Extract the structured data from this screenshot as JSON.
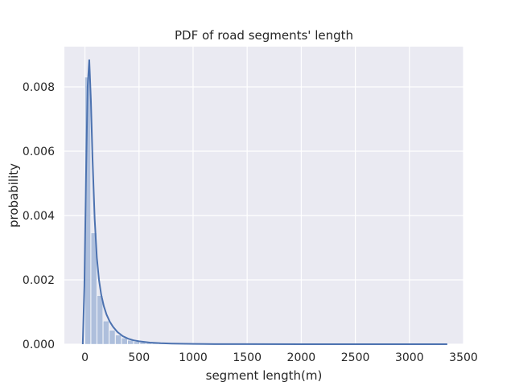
{
  "chart_data": {
    "type": "histogram",
    "title": "PDF of road segments' length",
    "xlabel": "segment length(m)",
    "ylabel": "probability",
    "xlim": [
      -190,
      3500
    ],
    "ylim": [
      0,
      0.00925
    ],
    "xticks": [
      0,
      500,
      1000,
      1500,
      2000,
      2500,
      3000,
      3500
    ],
    "xtick_labels": [
      "0",
      "500",
      "1000",
      "1500",
      "2000",
      "2500",
      "3000",
      "3500"
    ],
    "yticks": [
      0.0,
      0.002,
      0.004,
      0.006,
      0.008
    ],
    "ytick_labels": [
      "0.000",
      "0.002",
      "0.004",
      "0.006",
      "0.008"
    ],
    "grid": true,
    "colors": {
      "background": "#eaeaf2",
      "grid": "#ffffff",
      "bar": "#aebfdc",
      "kde": "#4c72b0"
    },
    "bins": {
      "bin_width": 56.6,
      "edges_start": 0,
      "values": [
        0.0083,
        0.00346,
        0.00151,
        0.00072,
        0.00043,
        0.00028,
        0.00019,
        0.00012,
        8e-05,
        6e-05,
        4e-05,
        3e-05,
        2.5e-05,
        2e-05,
        1.5e-05,
        1.2e-05,
        1e-05,
        8e-06,
        6e-06,
        5e-06,
        4e-06
      ]
    },
    "kde": {
      "x": [
        -20,
        -5,
        10,
        25,
        40,
        55,
        70,
        90,
        110,
        130,
        150,
        175,
        200,
        230,
        260,
        300,
        350,
        400,
        450,
        500,
        600,
        700,
        800,
        1000,
        1200,
        1500,
        2000,
        2500,
        3000,
        3350
      ],
      "y": [
        0.0,
        0.0018,
        0.0052,
        0.008,
        0.00885,
        0.0076,
        0.0058,
        0.0039,
        0.0027,
        0.002,
        0.00155,
        0.00118,
        0.00092,
        0.0007,
        0.00054,
        0.00038,
        0.00025,
        0.00017,
        0.00012,
        9e-05,
        5e-05,
        3e-05,
        1.8e-05,
        8e-06,
        4e-06,
        2e-06,
        1e-06,
        5e-07,
        3e-07,
        2e-07
      ]
    }
  }
}
